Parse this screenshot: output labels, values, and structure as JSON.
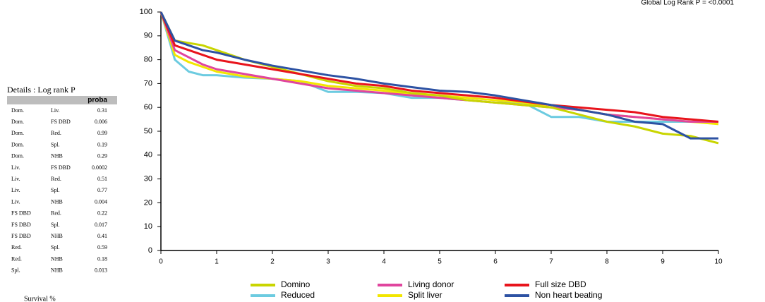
{
  "chart_data": {
    "type": "line",
    "annotation": "Global Log Rank P = <0.0001",
    "y_label": "Survival %",
    "x": [
      0,
      0.25,
      0.5,
      0.75,
      1,
      1.5,
      2,
      2.5,
      3,
      3.5,
      4,
      4.5,
      5,
      5.5,
      6,
      6.5,
      7,
      7.5,
      8,
      8.5,
      9,
      9.5,
      10
    ],
    "series": [
      {
        "name": "Domino",
        "color": "#c9d500",
        "values": [
          100,
          88,
          87,
          86,
          84,
          80,
          77,
          74,
          71,
          69,
          68,
          66,
          65,
          63,
          62,
          61,
          60,
          57,
          54,
          52,
          49,
          48,
          45
        ]
      },
      {
        "name": "Living donor",
        "color": "#e0459e",
        "values": [
          100,
          84,
          81,
          78,
          76,
          74,
          72,
          70,
          68,
          67,
          66,
          65,
          64,
          63,
          62,
          61,
          60,
          59,
          57,
          56,
          55,
          54,
          54
        ]
      },
      {
        "name": "Full size DBD",
        "color": "#e8141c",
        "values": [
          100,
          86,
          84,
          82,
          80,
          78,
          76,
          74,
          72,
          70,
          69,
          67,
          66,
          65,
          64,
          62.5,
          61,
          60,
          59,
          58,
          56,
          55,
          54
        ]
      },
      {
        "name": "Reduced",
        "color": "#6ccbe0",
        "values": [
          100,
          80,
          75,
          73.5,
          73.5,
          72.5,
          72,
          71,
          66.5,
          66.5,
          66,
          64,
          64,
          63,
          62,
          62,
          56,
          56,
          54,
          54,
          54,
          54,
          54
        ]
      },
      {
        "name": "Split liver",
        "color": "#f2e600",
        "values": [
          100,
          82,
          79,
          77,
          75,
          73,
          72,
          71,
          69,
          68,
          67,
          65.5,
          65,
          64,
          63,
          62,
          60,
          59,
          57,
          56,
          55,
          54,
          53
        ]
      },
      {
        "name": "Non heart beating",
        "color": "#2d52a3",
        "values": [
          100,
          88,
          86,
          84,
          83,
          80,
          77.5,
          75.5,
          73.5,
          72,
          70,
          68.5,
          67,
          66.5,
          65,
          63,
          61,
          59,
          57,
          54,
          53,
          47,
          47
        ]
      }
    ],
    "xlim": [
      0,
      10
    ],
    "xticks": [
      0,
      1,
      2,
      3,
      4,
      5,
      6,
      7,
      8,
      9,
      10
    ],
    "ylim": [
      0,
      100
    ],
    "yticks": [
      0,
      10,
      20,
      30,
      40,
      50,
      60,
      70,
      80,
      90,
      100
    ]
  },
  "details": {
    "title": "Details : Log rank P",
    "header": "proba",
    "rows": [
      [
        "Dom.",
        "Liv.",
        "0.31"
      ],
      [
        "Dom.",
        "FS DBD",
        "0.006"
      ],
      [
        "Dom.",
        "Red.",
        "0.99"
      ],
      [
        "Dom.",
        "Spl.",
        "0.19"
      ],
      [
        "Dom.",
        "NHB",
        "0.29"
      ],
      [
        "Liv.",
        "FS DBD",
        "0.0002"
      ],
      [
        "Liv.",
        "Red.",
        "0.51"
      ],
      [
        "Liv.",
        "Spl.",
        "0.77"
      ],
      [
        "Liv.",
        "NHB",
        "0.004"
      ],
      [
        "FS DBD",
        "Red.",
        "0.22"
      ],
      [
        "FS DBD",
        "Spl.",
        "0.017"
      ],
      [
        "FS DBD",
        "NHB",
        "0.41"
      ],
      [
        "Red.",
        "Spl.",
        "0.59"
      ],
      [
        "Red.",
        "NHB",
        "0.18"
      ],
      [
        "Spl.",
        "NHB",
        "0.013"
      ]
    ]
  }
}
